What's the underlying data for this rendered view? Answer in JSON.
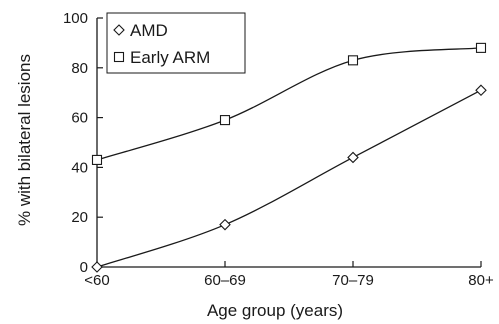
{
  "chart_data": {
    "type": "line",
    "xlabel": "Age group (years)",
    "ylabel": "% with bilateral lesions",
    "categories": [
      "<60",
      "60–69",
      "70–79",
      "80+"
    ],
    "ylim": [
      0,
      100
    ],
    "yticks": [
      0,
      20,
      40,
      60,
      80,
      100
    ],
    "grid": false,
    "legend_position": "top-left",
    "series": [
      {
        "name": "AMD",
        "marker": "diamond",
        "values": [
          0,
          17,
          44,
          71
        ]
      },
      {
        "name": "Early ARM",
        "marker": "square",
        "values": [
          43,
          59,
          83,
          88
        ]
      }
    ]
  }
}
